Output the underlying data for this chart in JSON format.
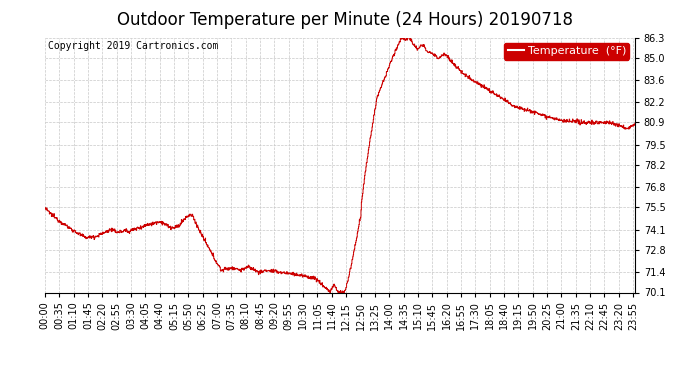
{
  "title": "Outdoor Temperature per Minute (24 Hours) 20190718",
  "copyright_text": "Copyright 2019 Cartronics.com",
  "legend_label": "Temperature  (°F)",
  "line_color": "#cc0000",
  "background_color": "#ffffff",
  "grid_color": "#c8c8c8",
  "ylim": [
    70.1,
    86.3
  ],
  "yticks": [
    70.1,
    71.4,
    72.8,
    74.1,
    75.5,
    76.8,
    78.2,
    79.5,
    80.9,
    82.2,
    83.6,
    85.0,
    86.3
  ],
  "num_minutes": 1440,
  "xtick_interval": 35,
  "title_fontsize": 12,
  "tick_fontsize": 7,
  "copyright_fontsize": 7,
  "legend_fontsize": 8
}
